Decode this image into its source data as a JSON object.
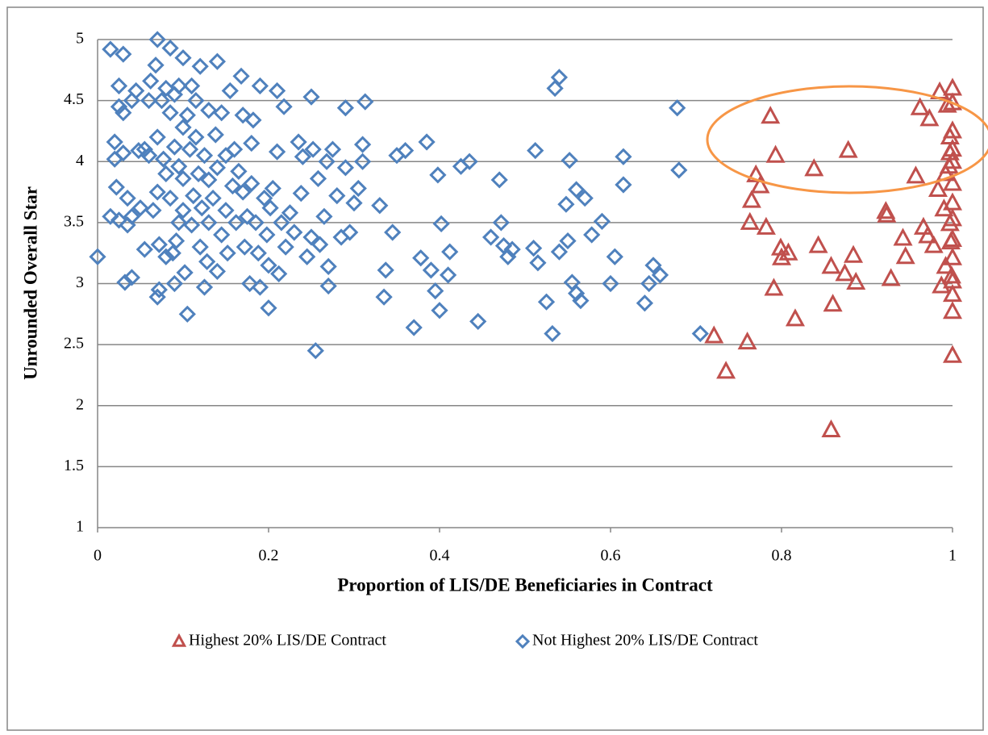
{
  "chart_data": {
    "type": "scatter",
    "x_label": "Proportion of LIS/DE Beneficiaries in Contract",
    "y_label": "Unrounded Overall Star",
    "xlim": [
      0,
      1
    ],
    "ylim": [
      1,
      5
    ],
    "xticks": [
      0,
      0.2,
      0.4,
      0.6,
      0.8,
      1
    ],
    "yticks": [
      1,
      1.5,
      2,
      2.5,
      3,
      3.5,
      4,
      4.5,
      5
    ],
    "grid": true,
    "legend": "bottom",
    "series": [
      {
        "name": "Highest 20% LIS/DE Contract",
        "color": "#c0504d",
        "marker": "triangle",
        "x": [
          0.721,
          0.735,
          0.76,
          0.787,
          0.793,
          0.77,
          0.775,
          0.765,
          0.763,
          0.782,
          0.799,
          0.808,
          0.8,
          0.791,
          0.816,
          0.838,
          0.878,
          0.843,
          0.858,
          0.86,
          0.858,
          0.874,
          0.884,
          0.887,
          0.922,
          0.923,
          0.928,
          0.942,
          0.945,
          0.957,
          0.962,
          0.973,
          0.966,
          0.971,
          0.983,
          0.985,
          0.978,
          0.987,
          0.992,
          0.99,
          0.992,
          0.994,
          0.996,
          0.997,
          0.998,
          0.999,
          1,
          1,
          1,
          1,
          1,
          1,
          1,
          1,
          1,
          1,
          1,
          1,
          1,
          1,
          0.997,
          0.997
        ],
        "values": [
          2.57,
          2.28,
          2.52,
          4.37,
          4.05,
          3.89,
          3.8,
          3.68,
          3.5,
          3.46,
          3.29,
          3.25,
          3.21,
          2.96,
          2.71,
          3.94,
          4.09,
          3.31,
          3.14,
          2.83,
          1.8,
          3.08,
          3.23,
          3.01,
          3.59,
          3.56,
          3.04,
          3.37,
          3.22,
          3.88,
          4.44,
          4.35,
          3.46,
          3.39,
          3.77,
          4.57,
          3.31,
          2.98,
          3.14,
          3.61,
          3.9,
          4.46,
          3.96,
          3.49,
          3.34,
          3.06,
          4.6,
          4.48,
          4.25,
          4.1,
          4.0,
          3.82,
          3.66,
          3.53,
          3.36,
          3.21,
          3.02,
          2.91,
          2.77,
          2.41,
          4.2,
          4.07
        ]
      },
      {
        "name": "Not Highest 20% LIS/DE Contract",
        "color": "#4f81bd",
        "marker": "diamond",
        "x": [
          0,
          0.015,
          0.02,
          0.015,
          0.02,
          0.022,
          0.025,
          0.025,
          0.025,
          0.03,
          0.03,
          0.03,
          0.032,
          0.035,
          0.035,
          0.04,
          0.04,
          0.04,
          0.045,
          0.048,
          0.05,
          0.055,
          0.055,
          0.06,
          0.06,
          0.062,
          0.065,
          0.068,
          0.07,
          0.07,
          0.07,
          0.07,
          0.072,
          0.072,
          0.075,
          0.077,
          0.08,
          0.08,
          0.08,
          0.085,
          0.085,
          0.085,
          0.088,
          0.09,
          0.09,
          0.09,
          0.092,
          0.095,
          0.095,
          0.095,
          0.1,
          0.1,
          0.1,
          0.1,
          0.102,
          0.105,
          0.105,
          0.108,
          0.11,
          0.11,
          0.112,
          0.115,
          0.115,
          0.118,
          0.12,
          0.12,
          0.122,
          0.125,
          0.125,
          0.128,
          0.13,
          0.13,
          0.13,
          0.135,
          0.138,
          0.14,
          0.14,
          0.14,
          0.145,
          0.145,
          0.15,
          0.15,
          0.152,
          0.155,
          0.158,
          0.16,
          0.162,
          0.165,
          0.168,
          0.17,
          0.17,
          0.172,
          0.175,
          0.178,
          0.18,
          0.18,
          0.182,
          0.185,
          0.188,
          0.19,
          0.19,
          0.195,
          0.198,
          0.2,
          0.2,
          0.202,
          0.205,
          0.21,
          0.21,
          0.212,
          0.215,
          0.218,
          0.22,
          0.225,
          0.23,
          0.235,
          0.238,
          0.24,
          0.245,
          0.25,
          0.25,
          0.252,
          0.255,
          0.258,
          0.26,
          0.265,
          0.268,
          0.27,
          0.27,
          0.275,
          0.28,
          0.285,
          0.29,
          0.29,
          0.295,
          0.3,
          0.305,
          0.31,
          0.31,
          0.313,
          0.33,
          0.335,
          0.337,
          0.345,
          0.35,
          0.36,
          0.37,
          0.378,
          0.385,
          0.39,
          0.395,
          0.398,
          0.4,
          0.402,
          0.41,
          0.412,
          0.425,
          0.435,
          0.445,
          0.46,
          0.47,
          0.472,
          0.475,
          0.48,
          0.485,
          0.51,
          0.512,
          0.515,
          0.525,
          0.532,
          0.535,
          0.54,
          0.54,
          0.548,
          0.55,
          0.552,
          0.555,
          0.56,
          0.56,
          0.565,
          0.57,
          0.578,
          0.59,
          0.6,
          0.605,
          0.615,
          0.615,
          0.64,
          0.645,
          0.65,
          0.658,
          0.678,
          0.68,
          0.705
        ],
        "values": [
          3.22,
          4.92,
          4.02,
          3.55,
          4.16,
          3.79,
          4.62,
          4.45,
          3.52,
          4.88,
          4.4,
          4.07,
          3.01,
          3.48,
          3.7,
          3.05,
          4.5,
          3.55,
          4.58,
          4.09,
          3.62,
          4.1,
          3.28,
          4.5,
          4.05,
          4.66,
          3.6,
          4.79,
          5,
          4.2,
          3.75,
          2.89,
          2.95,
          3.32,
          4.5,
          4.02,
          4.6,
          3.9,
          3.22,
          4.93,
          4.4,
          3.7,
          3.25,
          4.55,
          4.12,
          3,
          3.35,
          4.62,
          3.96,
          3.5,
          4.85,
          4.28,
          3.86,
          3.6,
          3.09,
          2.75,
          4.38,
          4.1,
          4.62,
          3.48,
          3.72,
          4.2,
          4.5,
          3.9,
          4.78,
          3.3,
          3.62,
          4.05,
          2.97,
          3.18,
          4.42,
          3.85,
          3.5,
          3.7,
          4.22,
          4.82,
          3.1,
          3.95,
          4.4,
          3.4,
          4.05,
          3.6,
          3.25,
          4.58,
          3.8,
          4.1,
          3.5,
          3.92,
          4.7,
          4.38,
          3.75,
          3.3,
          3.55,
          3,
          4.15,
          3.82,
          4.34,
          3.5,
          3.25,
          2.97,
          4.62,
          3.7,
          3.4,
          2.8,
          3.15,
          3.62,
          3.78,
          4.58,
          4.08,
          3.08,
          3.5,
          4.45,
          3.3,
          3.58,
          3.42,
          4.16,
          3.74,
          4.04,
          3.22,
          4.53,
          3.38,
          4.1,
          2.45,
          3.86,
          3.32,
          3.55,
          4,
          3.14,
          2.98,
          4.1,
          3.72,
          3.38,
          4.44,
          3.95,
          3.42,
          3.66,
          3.78,
          4.14,
          4,
          4.49,
          3.64,
          2.89,
          3.11,
          3.42,
          4.05,
          4.09,
          2.64,
          3.21,
          4.16,
          3.11,
          2.94,
          3.89,
          2.78,
          3.49,
          3.07,
          3.26,
          3.96,
          4,
          2.69,
          3.38,
          3.85,
          3.5,
          3.31,
          3.22,
          3.28,
          3.29,
          4.09,
          3.17,
          2.85,
          2.59,
          4.6,
          3.26,
          4.69,
          3.65,
          3.35,
          4.01,
          3.01,
          2.92,
          3.77,
          2.86,
          3.7,
          3.4,
          3.51,
          3,
          3.22,
          4.04,
          3.81,
          2.84,
          3,
          3.15,
          3.07,
          4.44,
          3.93,
          2.59
        ]
      }
    ]
  }
}
